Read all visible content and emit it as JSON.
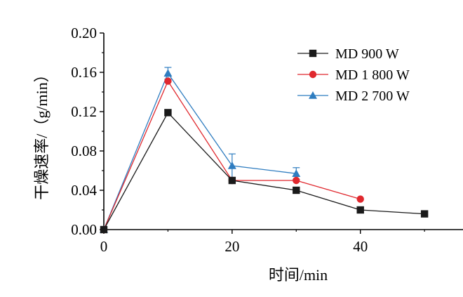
{
  "chart_data": {
    "type": "line",
    "title": "",
    "xlabel": "时间/min",
    "ylabel": "干燥速率/（g/min）",
    "xlim": [
      0,
      56
    ],
    "ylim": [
      0,
      0.2
    ],
    "xticks": [
      "0",
      "20",
      "40"
    ],
    "yticks": [
      "0.00",
      "0.04",
      "0.08",
      "0.12",
      "0.16",
      "0.20"
    ],
    "legend_position": "top-right",
    "grid": false,
    "series": [
      {
        "name": "MD 900 W",
        "color": "#1a1a1a",
        "marker": "square",
        "x": [
          0,
          10,
          20,
          30,
          40,
          50
        ],
        "y": [
          0.0,
          0.119,
          0.05,
          0.04,
          0.02,
          0.016
        ],
        "err": [
          0.0,
          0.003,
          0.0,
          0.0,
          0.0,
          0.0
        ]
      },
      {
        "name": "MD 1 800 W",
        "color": "#e0282e",
        "marker": "circle",
        "x": [
          0,
          10,
          20,
          30,
          40
        ],
        "y": [
          0.0,
          0.151,
          0.05,
          0.05,
          0.031
        ],
        "err": [
          0.0,
          0.0,
          0.0,
          0.0,
          0.0
        ]
      },
      {
        "name": "MD 2 700 W",
        "color": "#2f7dc0",
        "marker": "triangle",
        "x": [
          0,
          10,
          20,
          30
        ],
        "y": [
          0.0,
          0.159,
          0.065,
          0.057
        ],
        "err": [
          0.0,
          0.006,
          0.012,
          0.006
        ]
      }
    ]
  }
}
